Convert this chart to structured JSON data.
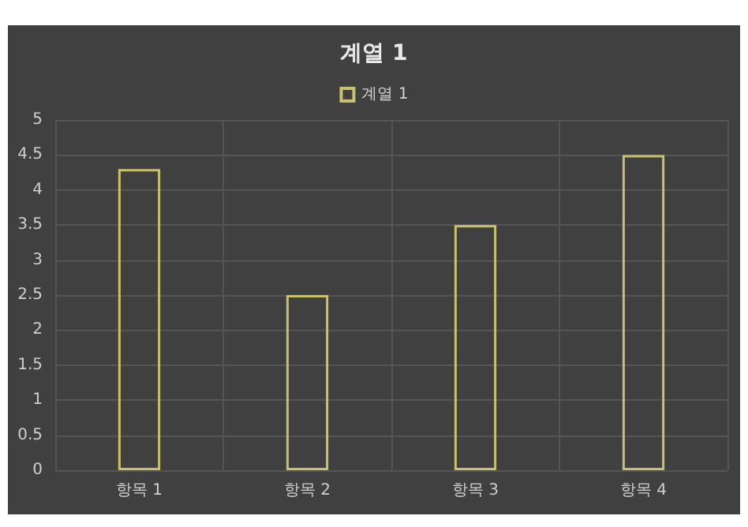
{
  "chart_data": {
    "type": "bar",
    "title": "계열 1",
    "categories": [
      "항목 1",
      "항목 2",
      "항목 3",
      "항목 4"
    ],
    "series": [
      {
        "name": "계열 1",
        "color": "#c9c26a",
        "values": [
          4.3,
          2.5,
          3.5,
          4.5
        ]
      }
    ],
    "ylim": [
      0,
      5
    ],
    "yticks": [
      0,
      0.5,
      1,
      1.5,
      2,
      2.5,
      3,
      3.5,
      4,
      4.5,
      5
    ],
    "grid": true,
    "legend": "top"
  }
}
